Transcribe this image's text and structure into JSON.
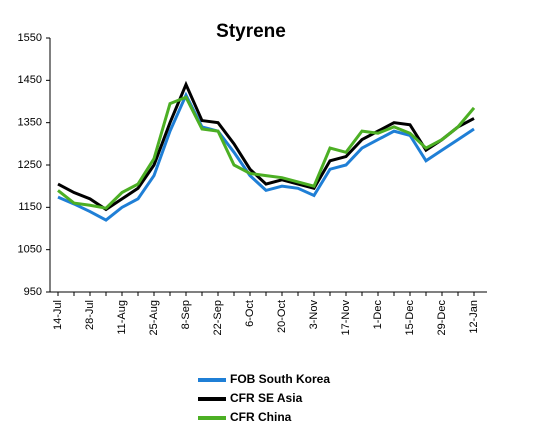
{
  "chart_data": {
    "type": "line",
    "title": "Styrene",
    "categories": [
      "14-Jul",
      null,
      "28-Jul",
      null,
      "11-Aug",
      null,
      "25-Aug",
      null,
      "8-Sep",
      null,
      "22-Sep",
      null,
      "6-Oct",
      null,
      "20-Oct",
      null,
      "3-Nov",
      null,
      "17-Nov",
      null,
      "1-Dec",
      null,
      "15-Dec",
      null,
      "29-Dec",
      null,
      "12-Jan"
    ],
    "series": [
      {
        "name": "FOB South Korea",
        "color": "#1f7fd6",
        "values": [
          1174,
          1158,
          1140,
          1120,
          1150,
          1170,
          1225,
          1330,
          1415,
          1340,
          1330,
          1280,
          1225,
          1190,
          1200,
          1195,
          1178,
          1240,
          1250,
          1290,
          1310,
          1330,
          1320,
          1260,
          1285,
          1310,
          1335
        ]
      },
      {
        "name": "CFR SE Asia",
        "color": "#000000",
        "values": [
          1205,
          1185,
          1170,
          1145,
          1170,
          1195,
          1250,
          1350,
          1440,
          1355,
          1350,
          1300,
          1240,
          1205,
          1215,
          1205,
          1195,
          1260,
          1270,
          1310,
          1330,
          1350,
          1345,
          1285,
          1310,
          1340,
          1360
        ]
      },
      {
        "name": "CFR China",
        "color": "#4caf24",
        "values": [
          1190,
          1160,
          1155,
          1148,
          1185,
          1205,
          1265,
          1395,
          1410,
          1335,
          1330,
          1250,
          1230,
          1225,
          1220,
          1210,
          1200,
          1290,
          1280,
          1330,
          1325,
          1340,
          1325,
          1290,
          1310,
          1340,
          1385
        ]
      }
    ],
    "ylim": [
      950,
      1550
    ],
    "yticks": [
      950,
      1050,
      1150,
      1250,
      1350,
      1450,
      1550
    ]
  }
}
